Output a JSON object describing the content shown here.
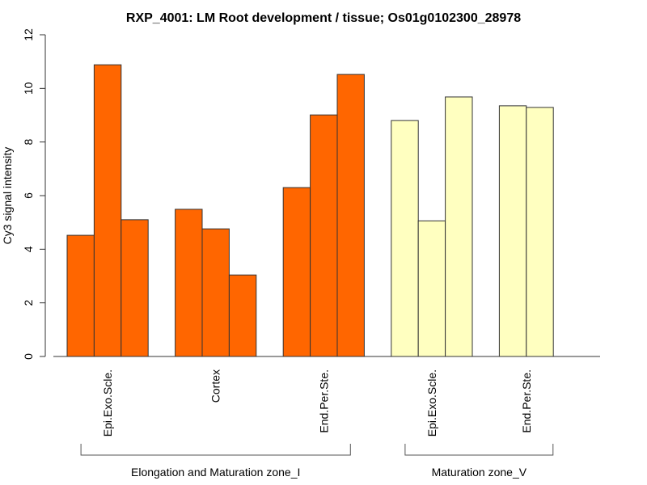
{
  "chart_data": {
    "type": "bar",
    "title": "RXP_4001: LM Root development / tissue; Os01g0102300_28978",
    "xlabel": "",
    "ylabel": "Cy3 signal intensity",
    "ylim": [
      0,
      12
    ],
    "yticks": [
      0,
      2,
      4,
      6,
      8,
      10,
      12
    ],
    "grid": false,
    "legend": "none",
    "categories": [
      {
        "label": "Epi.Exo.Scle.",
        "zone": "Elongation and Maturation zone_I",
        "color": "#FF6600",
        "values": [
          4.52,
          10.88,
          5.1
        ]
      },
      {
        "label": "Cortex",
        "zone": "Elongation and Maturation zone_I",
        "color": "#FF6600",
        "values": [
          5.49,
          4.76,
          3.04
        ]
      },
      {
        "label": "End.Per.Ste.",
        "zone": "Elongation and Maturation zone_I",
        "color": "#FF6600",
        "values": [
          6.3,
          9.01,
          10.52
        ]
      },
      {
        "label": "Epi.Exo.Scle.",
        "zone": "Maturation zone_V",
        "color": "#FFFFC0",
        "values": [
          8.8,
          5.06,
          9.68
        ]
      },
      {
        "label": "End.Per.Ste.",
        "zone": "Maturation zone_V",
        "color": "#FFFFC0",
        "values": [
          9.35,
          9.29
        ]
      }
    ],
    "groups": [
      {
        "label": "Elongation and Maturation zone_I",
        "category_indices": [
          0,
          1,
          2
        ]
      },
      {
        "label": "Maturation zone_V",
        "category_indices": [
          3,
          4
        ]
      }
    ]
  }
}
